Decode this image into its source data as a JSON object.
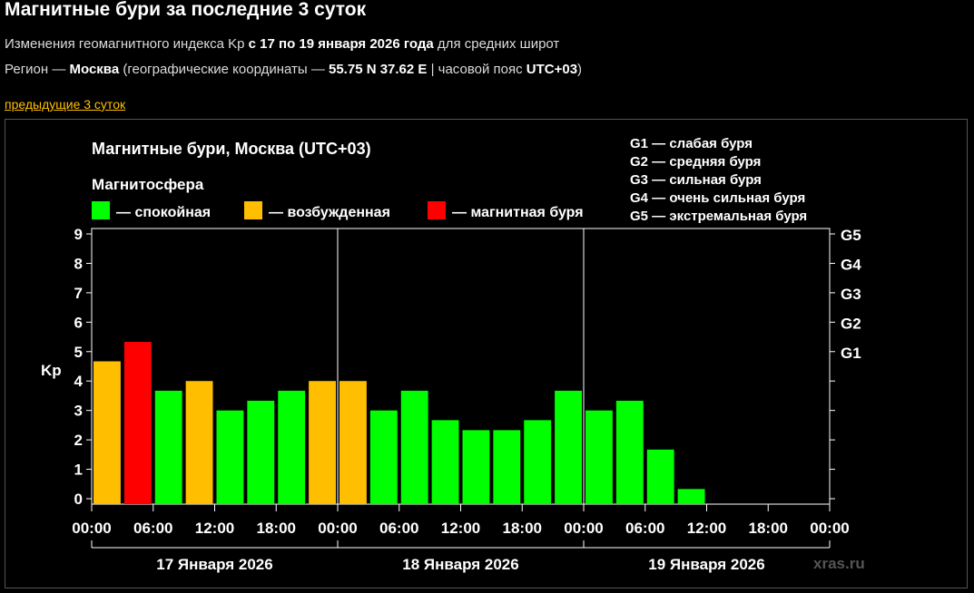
{
  "page": {
    "title": "Магнитные бури за последние 3 суток",
    "line1_a": "Изменения геомагнитного индекса Kp ",
    "line1_b": "с 17 по 19 января 2026 года",
    "line1_c": " для средних широт",
    "line2_a": "Регион — ",
    "line2_b": "Москва",
    "line2_c": " (географические координаты — ",
    "line2_d": "55.75 N 37.62 E",
    "line2_e": " | часовой пояс ",
    "line2_f": "UTC+03",
    "line2_g": ")",
    "prev_link": "предыдущие 3 суток"
  },
  "chart_data": {
    "type": "bar",
    "title": "Магнитные бури, Москва (UTC+03)",
    "legend_title": "Магнитосфера",
    "legend": [
      {
        "label": "— спокойная",
        "color": "#00ff00"
      },
      {
        "label": "— возбужденная",
        "color": "#ffbf00"
      },
      {
        "label": "— магнитная буря",
        "color": "#ff0000"
      }
    ],
    "g_legend": [
      "G1 — слабая буря",
      "G2 — средняя буря",
      "G3 — сильная буря",
      "G4 — очень сильная буря",
      "G5 — экстремальная буря"
    ],
    "ylabel": "Kp",
    "ylim": [
      0,
      9
    ],
    "y_ticks": [
      "0",
      "1",
      "2",
      "3",
      "4",
      "5",
      "6",
      "7",
      "8",
      "9"
    ],
    "g_ticks": [
      {
        "label": "G1",
        "value": 5
      },
      {
        "label": "G2",
        "value": 6
      },
      {
        "label": "G3",
        "value": 7
      },
      {
        "label": "G4",
        "value": 8
      },
      {
        "label": "G5",
        "value": 9
      }
    ],
    "x_ticks": [
      "00:00",
      "06:00",
      "12:00",
      "18:00",
      "00:00",
      "06:00",
      "12:00",
      "18:00",
      "00:00",
      "06:00",
      "12:00",
      "18:00",
      "00:00"
    ],
    "days": [
      "17 Января 2026",
      "18 Января 2026",
      "19 Января 2026"
    ],
    "bars": [
      {
        "value": 4.67,
        "color": "#ffbf00"
      },
      {
        "value": 5.33,
        "color": "#ff0000"
      },
      {
        "value": 3.67,
        "color": "#00ff00"
      },
      {
        "value": 4.0,
        "color": "#ffbf00"
      },
      {
        "value": 3.0,
        "color": "#00ff00"
      },
      {
        "value": 3.33,
        "color": "#00ff00"
      },
      {
        "value": 3.67,
        "color": "#00ff00"
      },
      {
        "value": 4.0,
        "color": "#ffbf00"
      },
      {
        "value": 4.0,
        "color": "#ffbf00"
      },
      {
        "value": 3.0,
        "color": "#00ff00"
      },
      {
        "value": 3.67,
        "color": "#00ff00"
      },
      {
        "value": 2.67,
        "color": "#00ff00"
      },
      {
        "value": 2.33,
        "color": "#00ff00"
      },
      {
        "value": 2.33,
        "color": "#00ff00"
      },
      {
        "value": 2.67,
        "color": "#00ff00"
      },
      {
        "value": 3.67,
        "color": "#00ff00"
      },
      {
        "value": 3.0,
        "color": "#00ff00"
      },
      {
        "value": 3.33,
        "color": "#00ff00"
      },
      {
        "value": 1.67,
        "color": "#00ff00"
      },
      {
        "value": 0.33,
        "color": "#00ff00"
      }
    ],
    "total_slots": 24,
    "watermark": "xras.ru"
  }
}
